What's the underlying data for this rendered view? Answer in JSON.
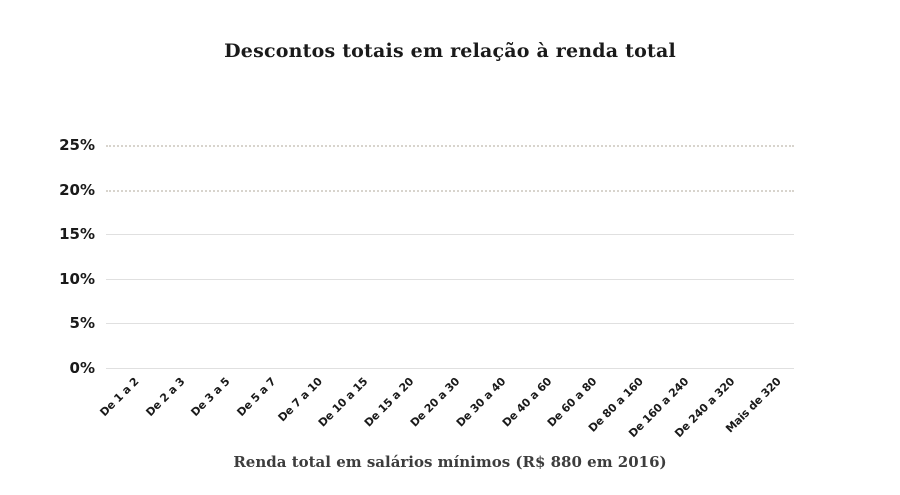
{
  "chart_data": {
    "type": "bar",
    "title": "Descontos totais em relação à renda total",
    "xlabel": "Renda total em salários mínimos (R$ 880 em 2016)",
    "ylabel": "",
    "categories": [
      "De 1 a 2",
      "De 2 a 3",
      "De 3 a 5",
      "De 5 a 7",
      "De 7 a 10",
      "De 10 a 15",
      "De 15 a 20",
      "De 20 a 30",
      "De 30 a 40",
      "De 40 a 60",
      "De 60 a 80",
      "De 80 a 160",
      "De 160 a 240",
      "De 240 a 320",
      "Mais de 320"
    ],
    "series": [],
    "ylim": [
      0,
      25
    ],
    "y_ticks": [
      {
        "value": 0,
        "label": "0%",
        "gridline_style": "solid"
      },
      {
        "value": 5,
        "label": "5%",
        "gridline_style": "solid"
      },
      {
        "value": 10,
        "label": "10%",
        "gridline_style": "solid"
      },
      {
        "value": 15,
        "label": "15%",
        "gridline_style": "solid"
      },
      {
        "value": 20,
        "label": "20%",
        "gridline_style": "dotted"
      },
      {
        "value": 25,
        "label": "25%",
        "gridline_style": "dotted"
      }
    ],
    "grid": "horizontal",
    "legend_position": "none"
  },
  "colors": {
    "background": "#ffffff",
    "title_text": "#1a1a1a",
    "tick_text": "#1a1a1a",
    "axis_title_text": "#3d3d3d",
    "gridline_solid": "#e0e0e0",
    "gridline_dotted": "#d8d4cd"
  }
}
